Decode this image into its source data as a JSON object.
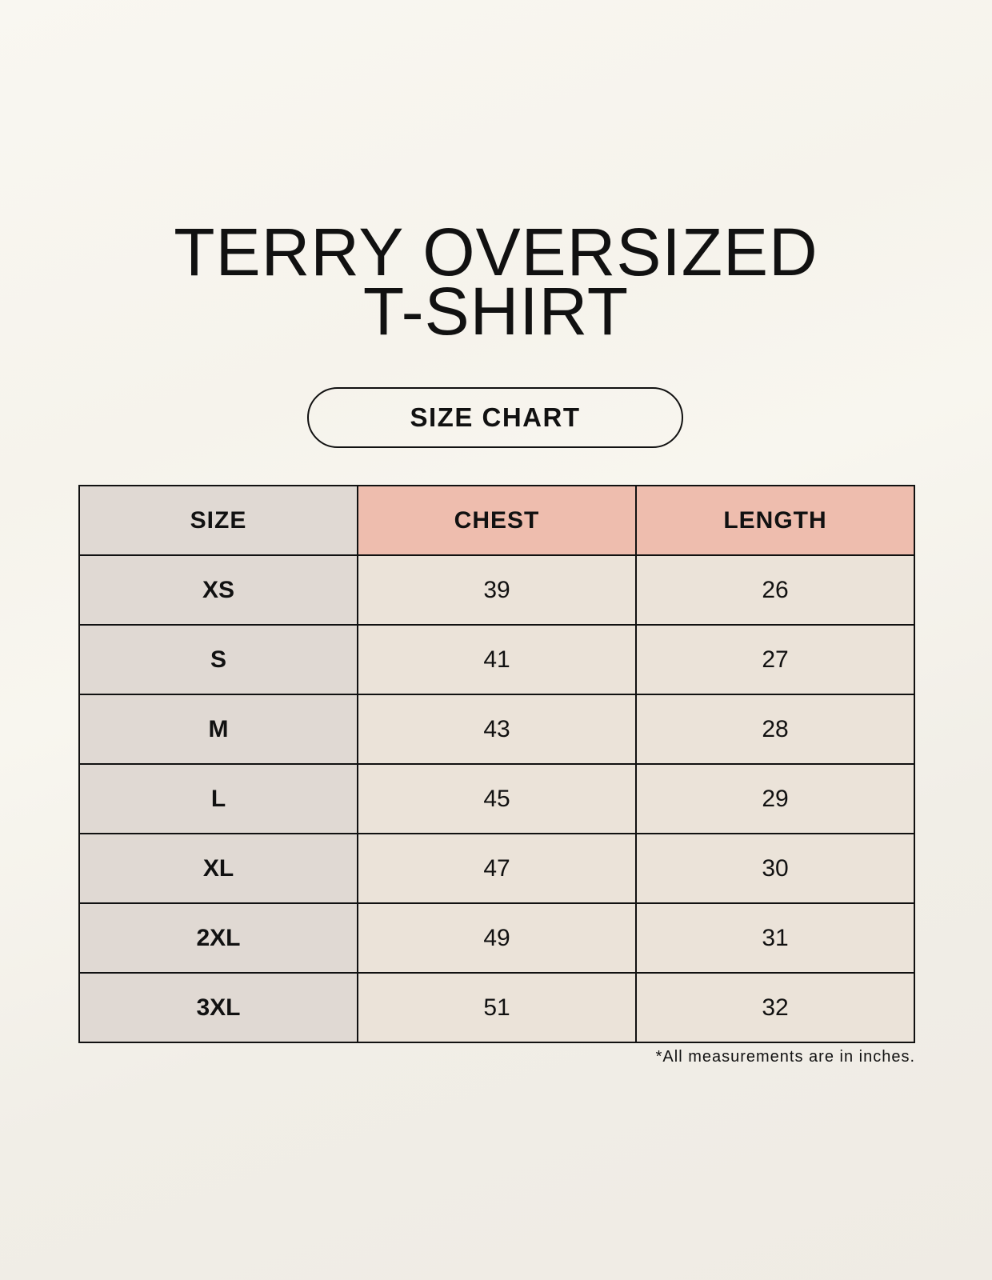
{
  "title": {
    "line1": "TERRY OVERSIZED",
    "line2": "T-SHIRT"
  },
  "badge": "SIZE CHART",
  "table": {
    "headers": [
      "SIZE",
      "CHEST",
      "LENGTH"
    ],
    "rows": [
      [
        "XS",
        "39",
        "26"
      ],
      [
        "S",
        "41",
        "27"
      ],
      [
        "M",
        "43",
        "28"
      ],
      [
        "L",
        "45",
        "29"
      ],
      [
        "XL",
        "47",
        "30"
      ],
      [
        "2XL",
        "49",
        "31"
      ],
      [
        "3XL",
        "51",
        "32"
      ]
    ]
  },
  "note": "*All measurements are in inches.",
  "colors": {
    "size_column": "#e0d9d3",
    "header_accent": "#eebdae",
    "cell": "#ebe3d9",
    "background": "#f8f6ef"
  }
}
